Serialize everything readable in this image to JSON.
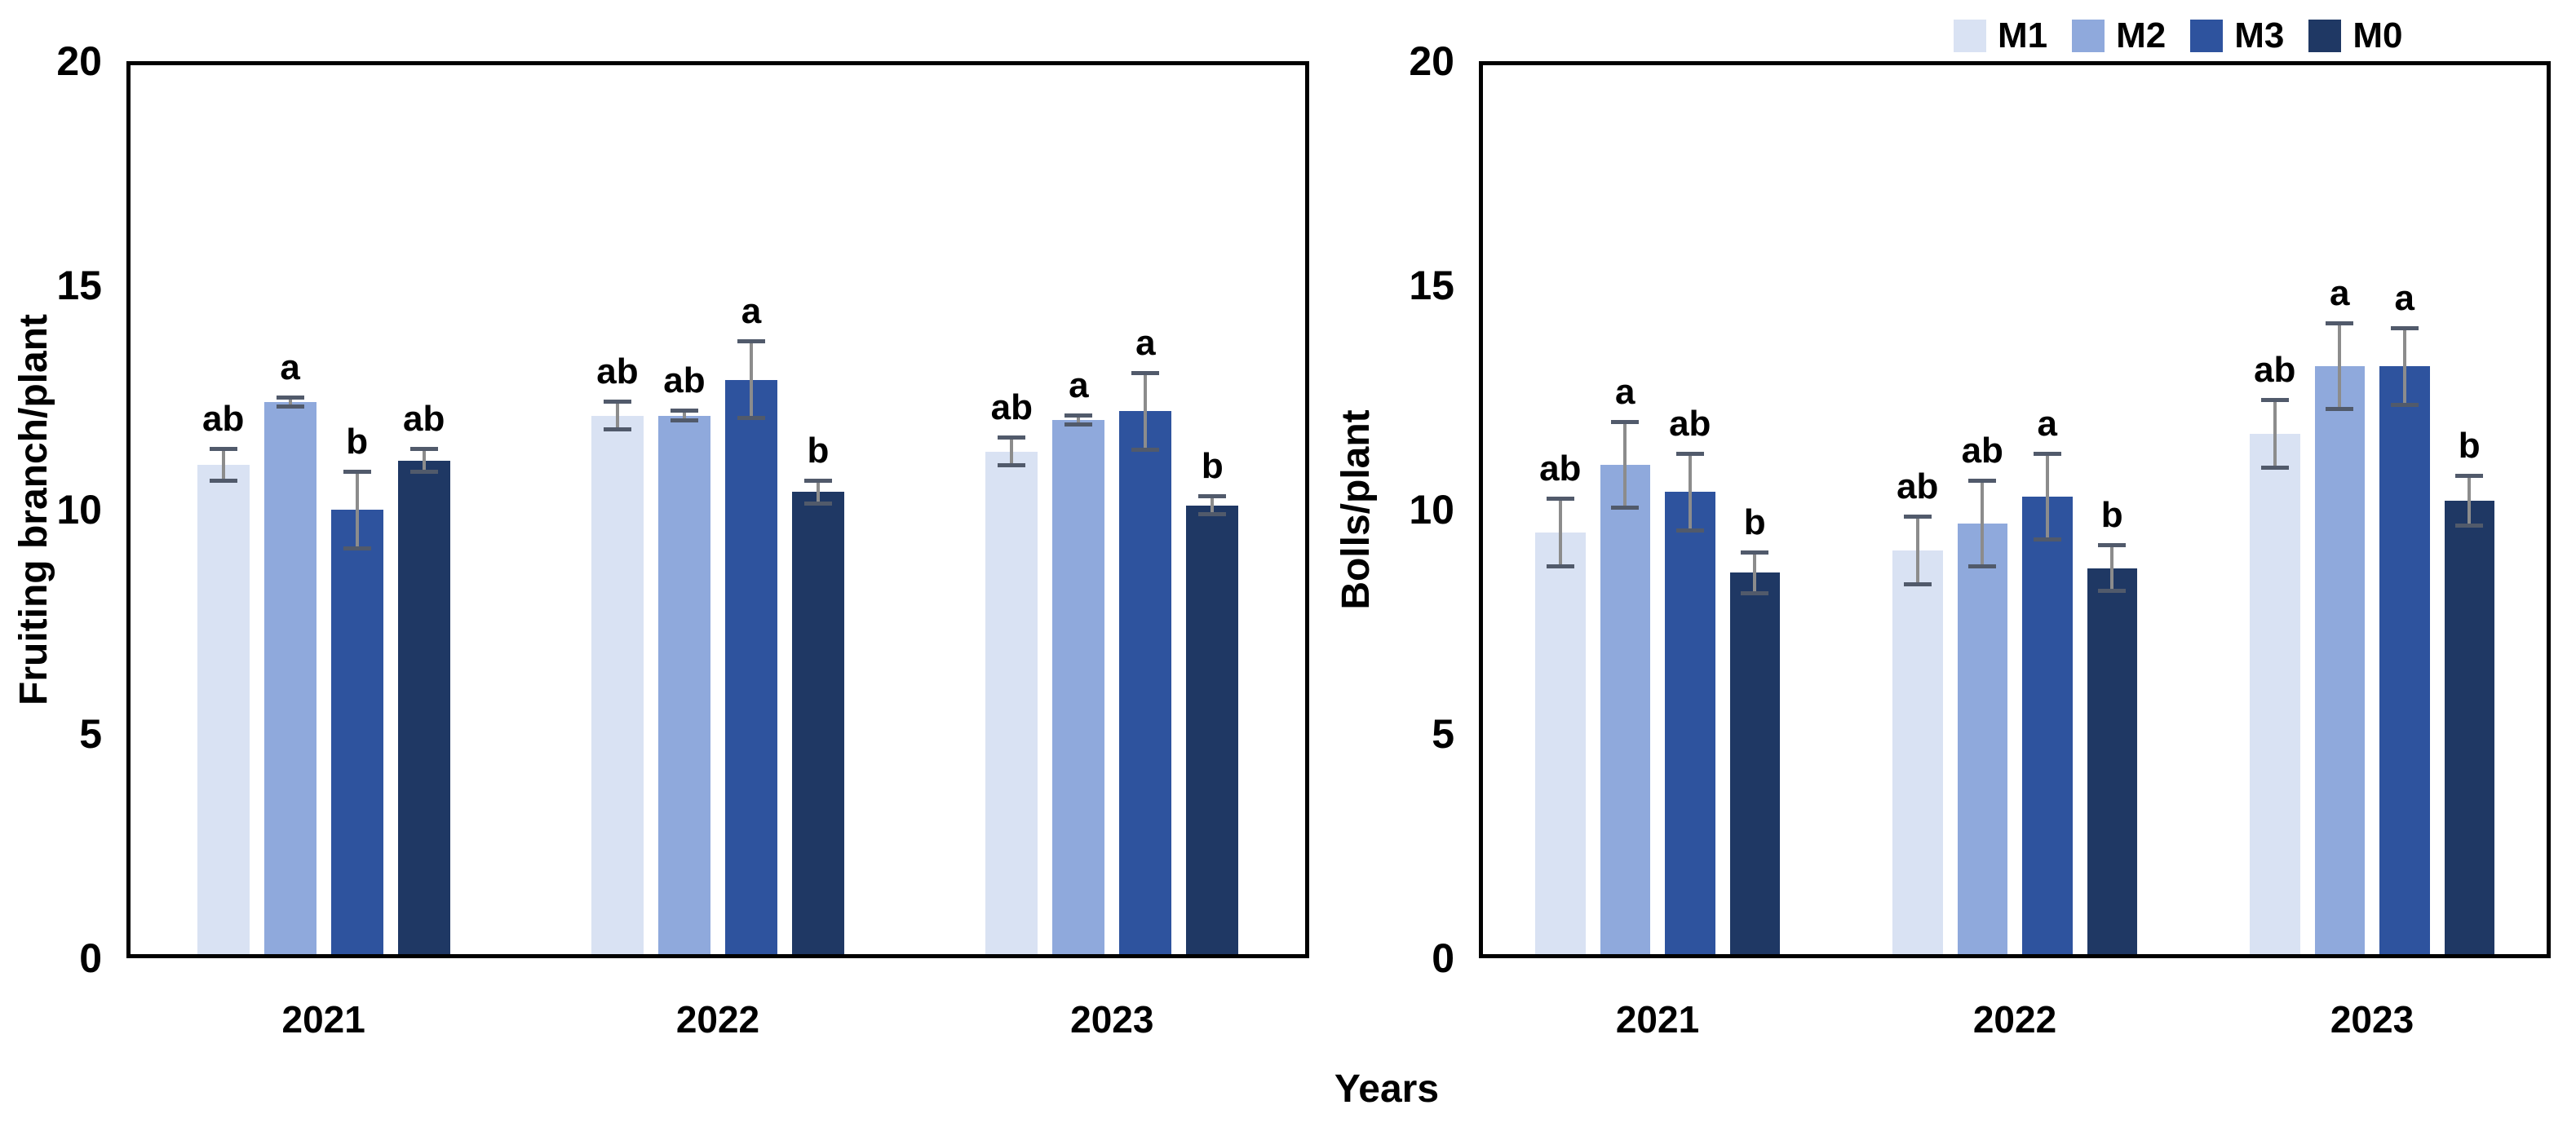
{
  "figure": {
    "x_axis_title": "Years",
    "background_color": "#ffffff",
    "axis_color": "#000000",
    "error_bar_line_color": "#8C8C8C",
    "error_bar_cap_color": "#515A6B"
  },
  "legend": {
    "position": "top-right",
    "items": [
      {
        "label": "M1",
        "color": "#D9E2F3"
      },
      {
        "label": "M2",
        "color": "#8FA9DC"
      },
      {
        "label": "M3",
        "color": "#2E539E"
      },
      {
        "label": "M0",
        "color": "#1F3864"
      }
    ]
  },
  "chart_data": [
    {
      "type": "bar",
      "title": "",
      "xlabel": "Years",
      "ylabel": "Fruiting branch/plant",
      "categories": [
        "2021",
        "2022",
        "2023"
      ],
      "ylim": [
        0,
        20
      ],
      "yticks": [
        0,
        5,
        10,
        15,
        20
      ],
      "grid": false,
      "legend_position": "top-right",
      "series": [
        {
          "name": "M1",
          "color": "#D9E2F3",
          "values": [
            11.0,
            12.1,
            11.3
          ],
          "errors": [
            0.4,
            0.35,
            0.35
          ],
          "sig_letters": [
            "ab",
            "ab",
            "ab"
          ]
        },
        {
          "name": "M2",
          "color": "#8FA9DC",
          "values": [
            12.4,
            12.1,
            12.0
          ],
          "errors": [
            0.15,
            0.15,
            0.15
          ],
          "sig_letters": [
            "a",
            "ab",
            "a"
          ]
        },
        {
          "name": "M3",
          "color": "#2E539E",
          "values": [
            10.0,
            12.9,
            12.2
          ],
          "errors": [
            0.9,
            0.9,
            0.9
          ],
          "sig_letters": [
            "b",
            "a",
            "a"
          ]
        },
        {
          "name": "M0",
          "color": "#1F3864",
          "values": [
            11.1,
            10.4,
            10.1
          ],
          "errors": [
            0.3,
            0.3,
            0.25
          ],
          "sig_letters": [
            "ab",
            "b",
            "b"
          ]
        }
      ]
    },
    {
      "type": "bar",
      "title": "",
      "xlabel": "Years",
      "ylabel": "Bolls/plant",
      "categories": [
        "2021",
        "2022",
        "2023"
      ],
      "ylim": [
        0,
        20
      ],
      "yticks": [
        0,
        5,
        10,
        15,
        20
      ],
      "grid": false,
      "legend_position": "top-right",
      "series": [
        {
          "name": "M1",
          "color": "#D9E2F3",
          "values": [
            9.5,
            9.1,
            11.7
          ],
          "errors": [
            0.8,
            0.8,
            0.8
          ],
          "sig_letters": [
            "ab",
            "ab",
            "ab"
          ]
        },
        {
          "name": "M2",
          "color": "#8FA9DC",
          "values": [
            11.0,
            9.7,
            13.2
          ],
          "errors": [
            1.0,
            1.0,
            1.0
          ],
          "sig_letters": [
            "a",
            "ab",
            "a"
          ]
        },
        {
          "name": "M3",
          "color": "#2E539E",
          "values": [
            10.4,
            10.3,
            13.2
          ],
          "errors": [
            0.9,
            1.0,
            0.9
          ],
          "sig_letters": [
            "ab",
            "a",
            "a"
          ]
        },
        {
          "name": "M0",
          "color": "#1F3864",
          "values": [
            8.6,
            8.7,
            10.2
          ],
          "errors": [
            0.5,
            0.55,
            0.6
          ],
          "sig_letters": [
            "b",
            "b",
            "b"
          ]
        }
      ]
    }
  ]
}
